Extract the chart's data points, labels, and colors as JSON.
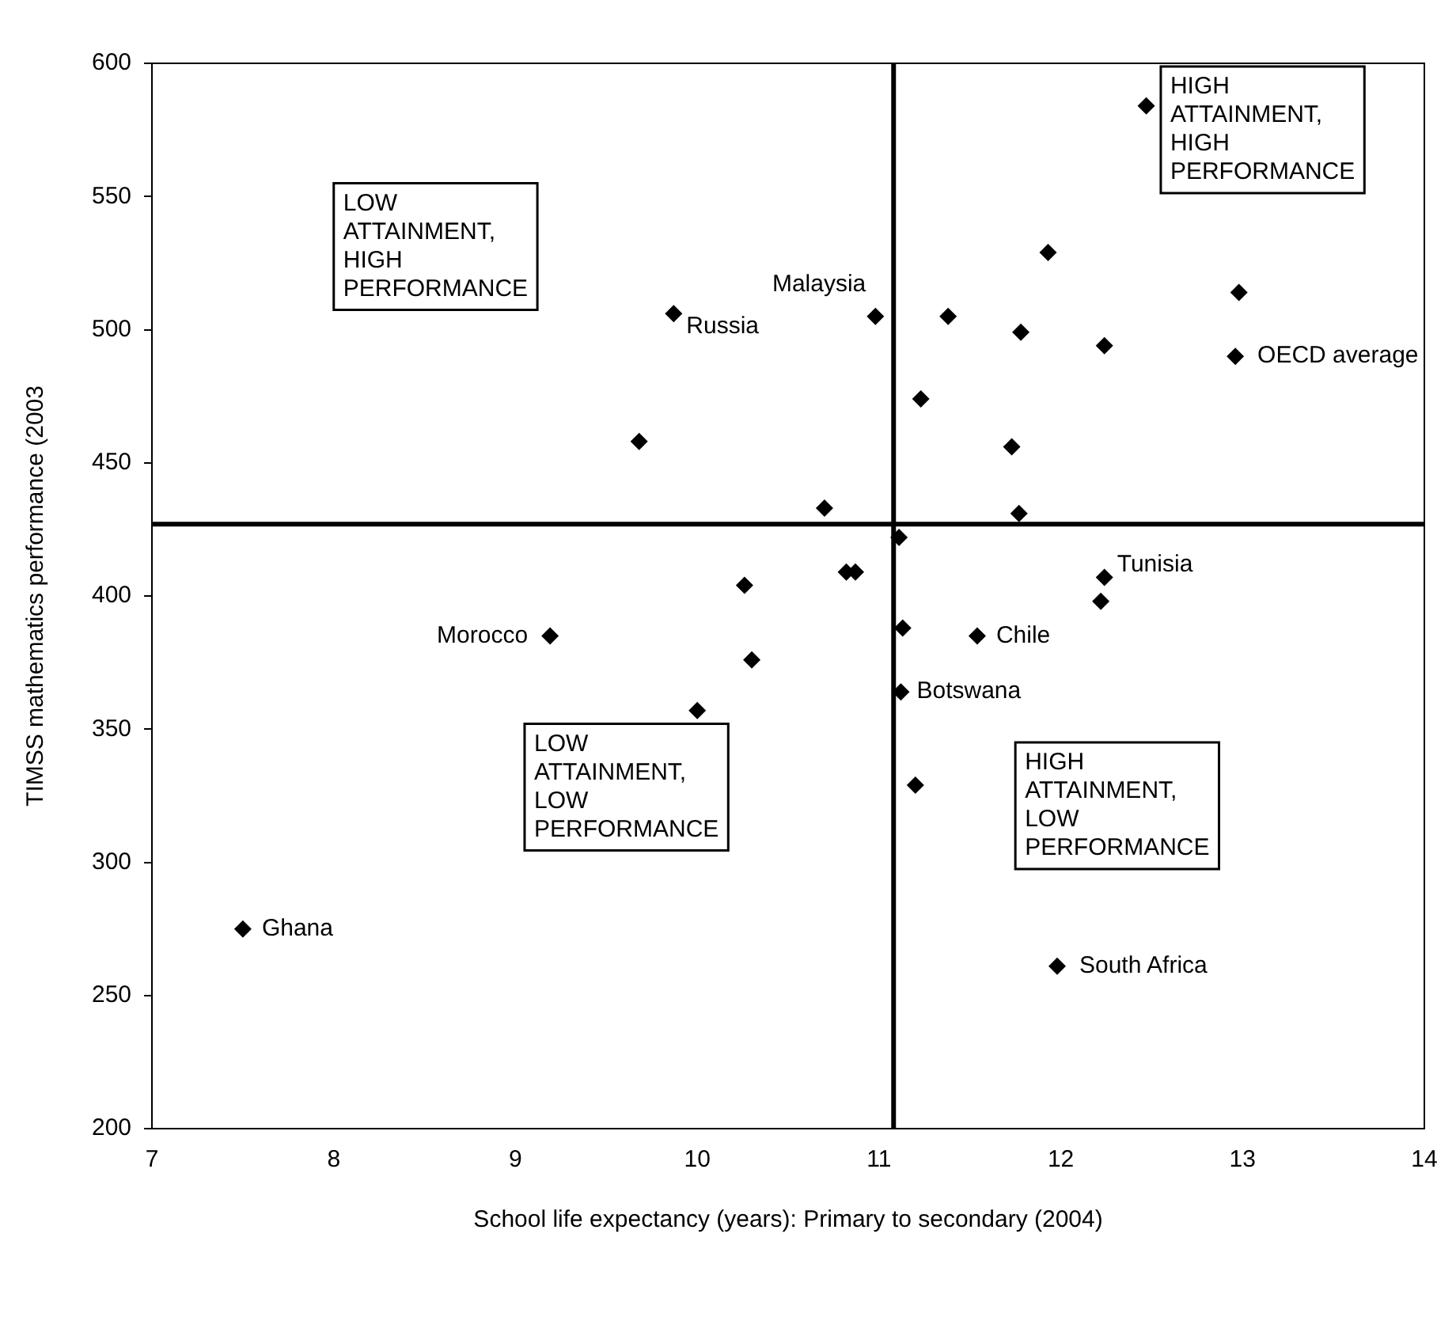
{
  "chart_data": {
    "type": "scatter",
    "xlabel": "School life expectancy (years): Primary to secondary (2004)",
    "ylabel": "TIMSS mathematics performance (2003",
    "marker": "diamond",
    "grid": false,
    "legend": false,
    "series": [
      {
        "color": "#000000",
        "x": [
          7.5,
          9.19,
          10.0,
          9.87,
          9.68,
          12.47,
          11.93,
          12.98,
          10.98,
          11.38,
          11.78,
          12.24,
          12.96,
          11.23,
          11.73,
          10.7,
          11.77,
          11.11,
          10.82,
          10.87,
          10.26,
          12.24,
          12.22,
          11.13,
          11.54,
          10.3,
          11.12,
          11.2,
          11.98
        ],
        "values": [
          275,
          385,
          357,
          506,
          458,
          584,
          529,
          514,
          505,
          505,
          499,
          494,
          490,
          474,
          456,
          433,
          431,
          422,
          409,
          409,
          404,
          407,
          398,
          388,
          385,
          376,
          364,
          329,
          261
        ]
      }
    ],
    "xlim": [
      7,
      14
    ],
    "xticks": [
      7,
      8,
      9,
      10,
      11,
      12,
      13,
      14
    ],
    "ylim": [
      200,
      600
    ],
    "yticks": [
      200,
      250,
      300,
      350,
      400,
      450,
      500,
      550,
      600
    ],
    "ref_lines": [
      {
        "axis": "y",
        "value": 427,
        "color": "#000000"
      },
      {
        "axis": "x",
        "value": 11.08,
        "color": "#000000"
      }
    ],
    "annotations": [
      "LOW\nATTAINMENT,\nHIGH\nPERFORMANCE",
      "HIGH\nATTAINMENT,\nHIGH\nPERFORMANCE",
      "LOW\nATTAINMENT,\nLOW\nPERFORMANCE",
      "HIGH\nATTAINMENT,\nLOW\nPERFORMANCE",
      {
        "text": "Malaysia",
        "x": 10.98,
        "y": 505
      },
      {
        "text": "Russia",
        "x": 9.87,
        "y": 506
      },
      {
        "text": "OECD average",
        "x": 12.96,
        "y": 490
      },
      {
        "text": "Tunisia",
        "x": 12.24,
        "y": 407
      },
      {
        "text": "Morocco",
        "x": 9.19,
        "y": 385
      },
      {
        "text": "Chile",
        "x": 11.54,
        "y": 385
      },
      {
        "text": "Botswana",
        "x": 11.12,
        "y": 364
      },
      {
        "text": "Ghana",
        "x": 7.5,
        "y": 275
      },
      {
        "text": "South Africa",
        "x": 11.98,
        "y": 261
      }
    ]
  }
}
